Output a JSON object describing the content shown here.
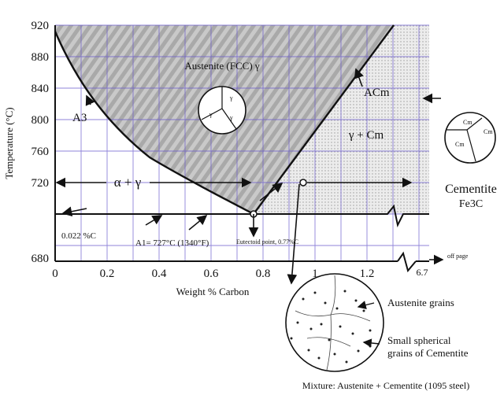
{
  "figure": {
    "x_axis": {
      "label": "Weight % Carbon",
      "ticks": [
        "0",
        "0.2",
        "0.4",
        "0.6",
        "0.8",
        "1",
        "1.2"
      ],
      "extra_tick": "6.7",
      "off_page": "off page"
    },
    "y_axis": {
      "label": "Temperature (°C)",
      "ticks": [
        "920",
        "880",
        "840",
        "800",
        "760",
        "720",
        "680"
      ]
    },
    "regions": {
      "austenite": "Austenite (FCC) γ",
      "alpha_gamma": "α + γ",
      "gamma_cm": "γ + Cm",
      "a3": "A3",
      "acm": "ACm",
      "a1": "A1= 727°C (1340°F)",
      "ferrite_limit": "0.022 %C",
      "eutectoid": "Eutectoid point, 0.77%C"
    },
    "grain_labels": [
      "γ",
      "γ",
      "γ"
    ],
    "cementite": {
      "title": "Cementite",
      "formula": "Fe3C",
      "grain_labels": [
        "Cm",
        "Cm",
        "Cm"
      ]
    },
    "microstructure": {
      "label_grains": "Austenite grains",
      "label_spherical_1": "Small spherical",
      "label_spherical_2": "grains of Cementite",
      "caption": "Mixture: Austenite + Cementite (1095 steel)"
    }
  }
}
